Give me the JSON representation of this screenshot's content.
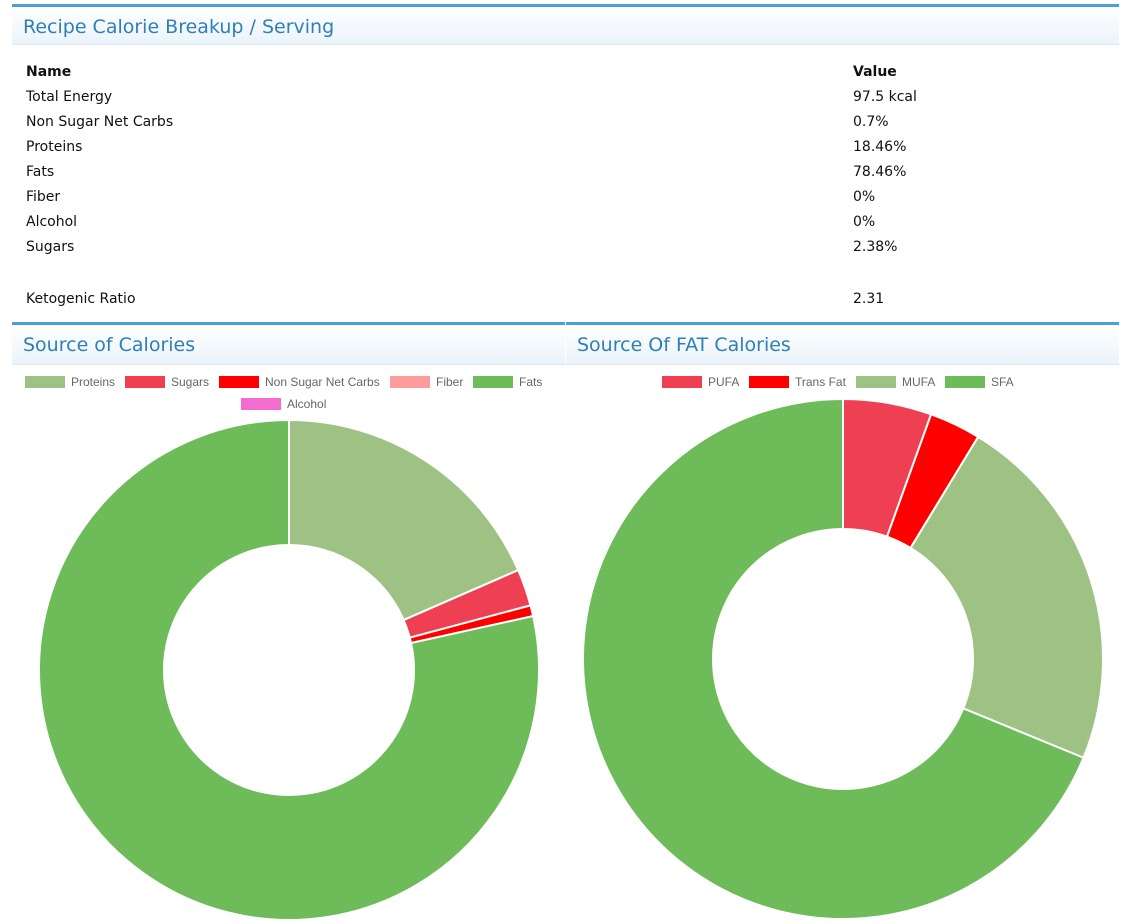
{
  "summary": {
    "title": "Recipe Calorie Breakup / Serving",
    "col_name": "Name",
    "col_value": "Value",
    "rows": [
      {
        "name": "Total Energy",
        "value": "97.5 kcal"
      },
      {
        "name": "Non Sugar Net Carbs",
        "value": "0.7%"
      },
      {
        "name": "Proteins",
        "value": "18.46%"
      },
      {
        "name": "Fats",
        "value": "78.46%"
      },
      {
        "name": "Fiber",
        "value": "0%"
      },
      {
        "name": "Alcohol",
        "value": "0%"
      },
      {
        "name": "Sugars",
        "value": "2.38%"
      }
    ],
    "ketogenic": {
      "name": "Ketogenic Ratio",
      "value": "2.31"
    }
  },
  "colors": {
    "accent": "#4a9fd8",
    "title_text": "#2f7fb7"
  },
  "chart_data": [
    {
      "type": "pie",
      "title": "Source of Calories",
      "categories": [
        "Proteins",
        "Sugars",
        "Non Sugar Net Carbs",
        "Fiber",
        "Fats",
        "Alcohol"
      ],
      "values": [
        18.46,
        2.38,
        0.7,
        0,
        78.46,
        0
      ],
      "colors": [
        "#9ec283",
        "#ef3f52",
        "#ff0000",
        "#ff9b9b",
        "#6dbb59",
        "#f56cd1"
      ],
      "legend": "top"
    },
    {
      "type": "pie",
      "title": "Source Of FAT Calories",
      "categories": [
        "PUFA",
        "Trans Fat",
        "MUFA",
        "SFA"
      ],
      "values": [
        5.5,
        3.2,
        22.5,
        68.8
      ],
      "colors": [
        "#ef3f52",
        "#ff0000",
        "#9ec283",
        "#6dbb59"
      ],
      "legend": "top"
    }
  ]
}
